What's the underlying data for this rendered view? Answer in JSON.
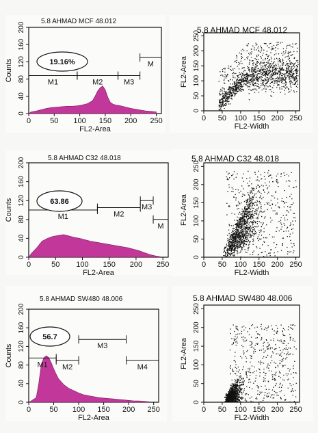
{
  "colors": {
    "fill": "#c2389a",
    "ink": "#111111",
    "paper": "#fbfbf9",
    "page": "#f7f7f5"
  },
  "chart_data": [
    {
      "type": "histogram",
      "title": "5.8 AHMAD MCF 48.012",
      "xlabel": "FL2-Area",
      "ylabel": "Counts",
      "xticks": [
        0,
        50,
        100,
        150,
        200,
        250
      ],
      "yticks": [
        0,
        40,
        80,
        120,
        160,
        200
      ],
      "xlim": [
        0,
        260
      ],
      "ylim": [
        0,
        200
      ],
      "annotation": "19.16%",
      "gates": [
        {
          "label": "M1",
          "from": 0,
          "to": 95,
          "y": 88
        },
        {
          "label": "M2",
          "from": 95,
          "to": 175,
          "y": 88
        },
        {
          "label": "M3",
          "from": 175,
          "to": 218,
          "y": 88
        },
        {
          "label": "M",
          "from": 218,
          "to": 260,
          "y": 130
        }
      ],
      "x": [
        5,
        15,
        25,
        35,
        45,
        55,
        65,
        75,
        85,
        95,
        105,
        115,
        125,
        130,
        135,
        140,
        145,
        150,
        155,
        160,
        165,
        170,
        180,
        190,
        200,
        210,
        220,
        230,
        240,
        250
      ],
      "y": [
        4,
        6,
        9,
        12,
        14,
        15,
        16,
        17,
        17,
        18,
        20,
        23,
        30,
        40,
        52,
        60,
        64,
        55,
        38,
        26,
        22,
        20,
        18,
        15,
        12,
        10,
        8,
        6,
        5,
        4
      ]
    },
    {
      "type": "scatter",
      "title": "5.8 AHMAD MCF 48.012",
      "xlabel": "FL2-Width",
      "ylabel": "FL2-Area",
      "xticks": [
        0,
        50,
        100,
        150,
        200,
        250
      ],
      "yticks": [
        0,
        50,
        100,
        150,
        200,
        250
      ],
      "xlim": [
        0,
        260
      ],
      "ylim": [
        0,
        260
      ]
    },
    {
      "type": "histogram",
      "title": "5.8 AHMAD C32 48.018",
      "xlabel": "FL2-Area",
      "ylabel": "Counts",
      "xticks": [
        0,
        50,
        100,
        150,
        200,
        250
      ],
      "yticks": [
        0,
        40,
        80,
        120,
        160,
        200
      ],
      "xlim": [
        0,
        260
      ],
      "ylim": [
        0,
        200
      ],
      "annotation": "63.86",
      "gates": [
        {
          "label": "M1",
          "from": 0,
          "to": 128,
          "y": 100
        },
        {
          "label": "M2",
          "from": 128,
          "to": 208,
          "y": 105
        },
        {
          "label": "M3",
          "from": 208,
          "to": 232,
          "y": 120
        },
        {
          "label": "M",
          "from": 232,
          "to": 260,
          "y": 80
        }
      ],
      "x": [
        5,
        15,
        25,
        35,
        45,
        55,
        65,
        75,
        85,
        95,
        105,
        115,
        125,
        135,
        145,
        155,
        165,
        175,
        185,
        195,
        205,
        215,
        225,
        235,
        245
      ],
      "y": [
        8,
        20,
        34,
        40,
        44,
        46,
        48,
        45,
        42,
        40,
        37,
        34,
        32,
        30,
        28,
        26,
        24,
        22,
        20,
        17,
        14,
        10,
        6,
        3,
        1
      ]
    },
    {
      "type": "scatter",
      "title": "5.8 AHMAD C32 48.018",
      "xlabel": "FL2-Width",
      "ylabel": "FL2-Area",
      "xticks": [
        0,
        50,
        100,
        150,
        200,
        250
      ],
      "yticks": [
        0,
        50,
        100,
        150,
        200,
        250
      ],
      "xlim": [
        0,
        260
      ],
      "ylim": [
        0,
        260
      ]
    },
    {
      "type": "histogram",
      "title": "5.8 AHMAD SW480 48.006",
      "xlabel": "FL2-Area",
      "ylabel": "Counts",
      "xticks": [
        0,
        50,
        100,
        150,
        200,
        250
      ],
      "yticks": [
        0,
        40,
        80,
        120,
        160,
        200
      ],
      "xlim": [
        0,
        260
      ],
      "ylim": [
        0,
        200
      ],
      "annotation": "56.7",
      "gates": [
        {
          "label": "M1",
          "from": 0,
          "to": 55,
          "y": 95
        },
        {
          "label": "M2",
          "from": 55,
          "to": 100,
          "y": 90
        },
        {
          "label": "M3",
          "from": 100,
          "to": 195,
          "y": 135
        },
        {
          "label": "M4",
          "from": 195,
          "to": 260,
          "y": 90
        }
      ],
      "x": [
        5,
        15,
        20,
        25,
        30,
        35,
        40,
        45,
        50,
        55,
        60,
        70,
        80,
        90,
        100,
        110,
        120,
        130,
        140,
        150,
        160,
        170,
        180,
        190,
        200,
        210,
        220,
        230,
        240
      ],
      "y": [
        3,
        10,
        40,
        80,
        95,
        100,
        96,
        85,
        72,
        60,
        50,
        38,
        30,
        25,
        20,
        16,
        14,
        12,
        10,
        9,
        8,
        7,
        6,
        5,
        4,
        3,
        3,
        2,
        1
      ]
    },
    {
      "type": "scatter",
      "title": "5.8 AHMAD SW480 48.006",
      "xlabel": "FL2-Width",
      "ylabel": "FL2-Area",
      "xticks": [
        0,
        50,
        100,
        150,
        200,
        250
      ],
      "yticks": [
        0,
        50,
        100,
        150,
        200,
        250
      ],
      "xlim": [
        0,
        260
      ],
      "ylim": [
        0,
        260
      ]
    }
  ]
}
